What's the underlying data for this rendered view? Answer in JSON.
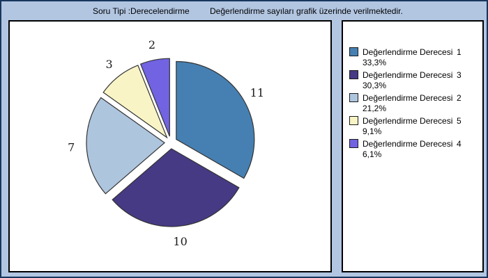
{
  "window": {
    "background_color": "#b2c6e2",
    "frame_color": "#17365d"
  },
  "header": {
    "question_type": "Soru Tipi :Derecelendirme",
    "description": "Değerlendirme sayıları grafik üzerinde verilmektedir."
  },
  "chart_data": {
    "type": "pie",
    "direction": "clockwise",
    "start_angle_deg": 0,
    "exploded": true,
    "total": 33,
    "slices": [
      {
        "name": "Değerlendirme Derecesi",
        "degree": "1",
        "value": 11,
        "percent_label": "33,3%",
        "color": "#4680b2"
      },
      {
        "name": "Değerlendirme Derecesi",
        "degree": "3",
        "value": 10,
        "percent_label": "30,3%",
        "color": "#463a85"
      },
      {
        "name": "Değerlendirme Derecesi",
        "degree": "2",
        "value": 7,
        "percent_label": "21,2%",
        "color": "#aec5de"
      },
      {
        "name": "Değerlendirme Derecesi",
        "degree": "5",
        "value": 3,
        "percent_label": "9,1%",
        "color": "#f8f4c6"
      },
      {
        "name": "Değerlendirme Derecesi",
        "degree": "4",
        "value": 2,
        "percent_label": "6,1%",
        "color": "#7163e1"
      }
    ],
    "slice_stroke_color": "#333333",
    "legend_position": "right"
  }
}
